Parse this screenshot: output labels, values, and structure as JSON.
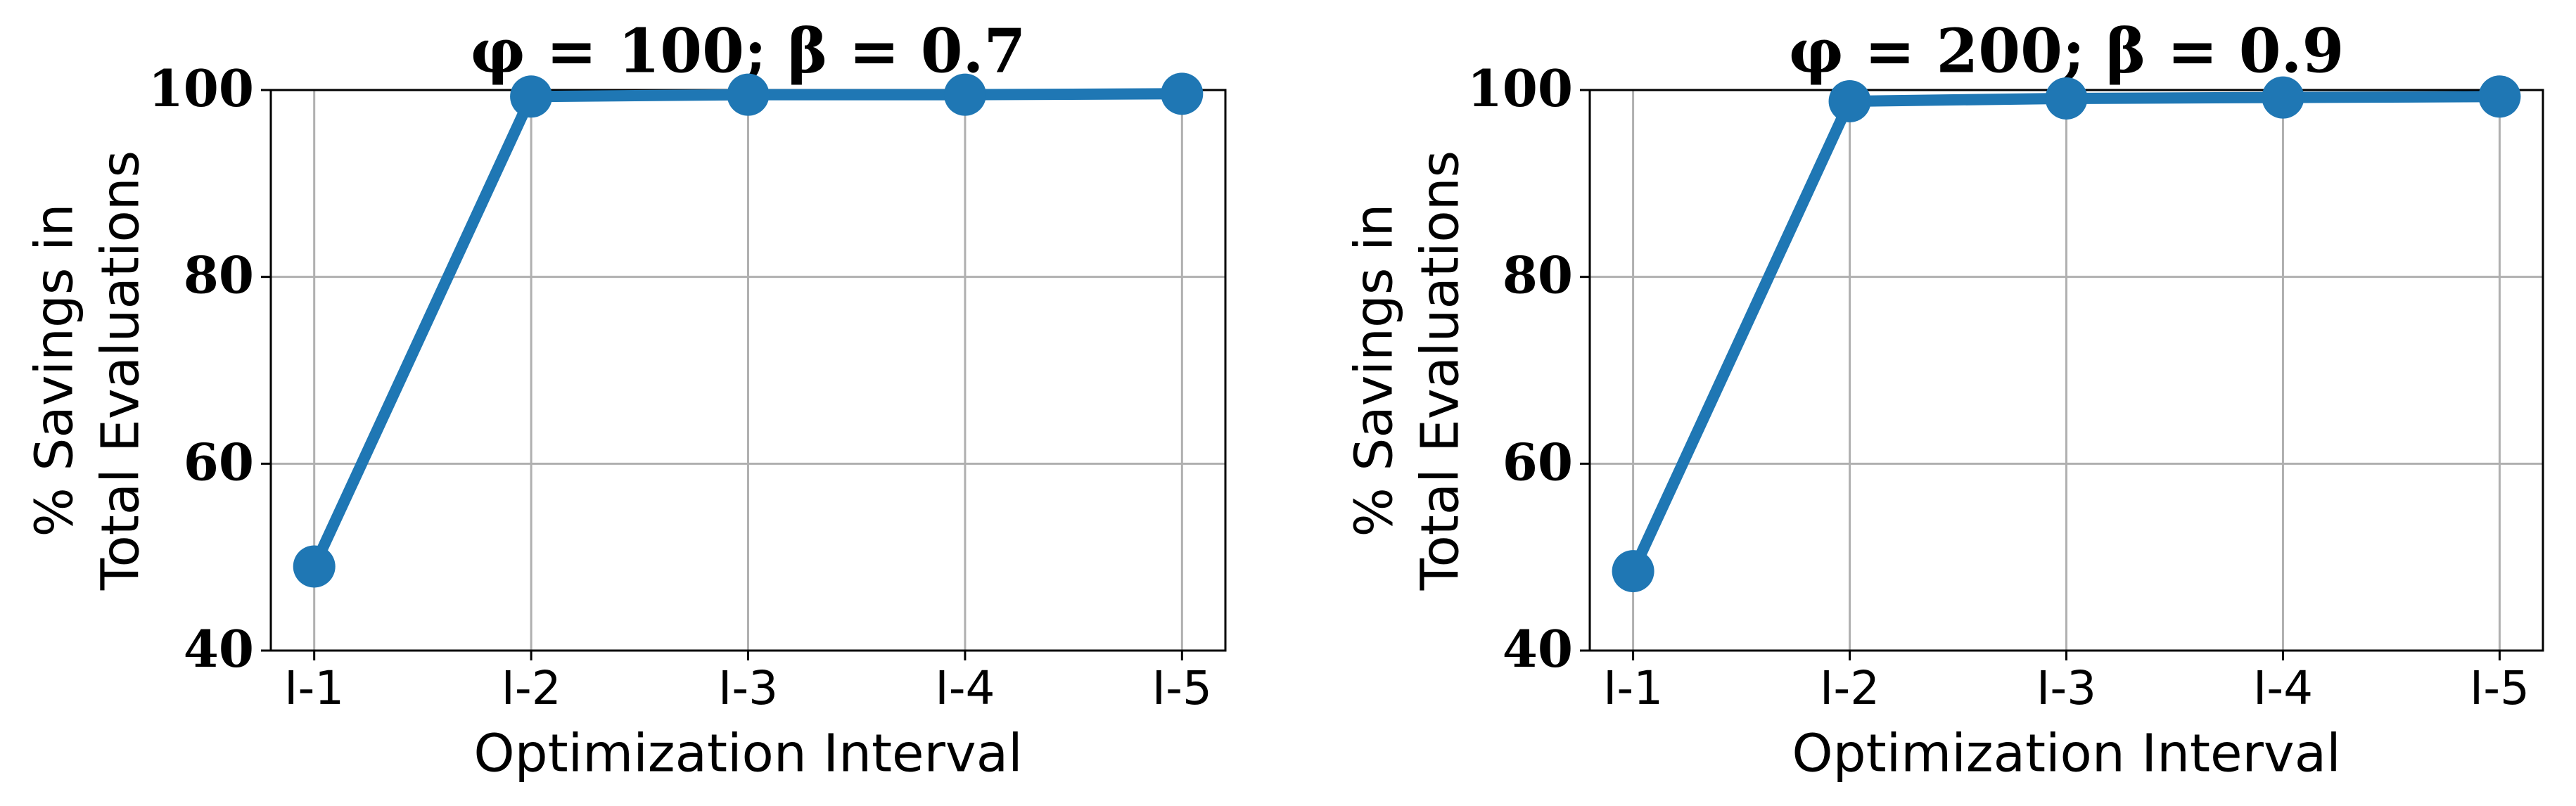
{
  "chart_data": [
    {
      "type": "line",
      "title": "φ = 100; β = 0.7",
      "xlabel": "Optimization Interval",
      "ylabel": [
        "% Savings in",
        "Total Evaluations"
      ],
      "categories": [
        "I-1",
        "I-2",
        "I-3",
        "I-4",
        "I-5"
      ],
      "series": [
        {
          "color": "#1f77b4",
          "values": [
            49,
            99.3,
            99.5,
            99.5,
            99.6
          ]
        }
      ],
      "ylim": [
        40,
        100
      ],
      "yticks": [
        40,
        60,
        80,
        100
      ],
      "grid": true
    },
    {
      "type": "line",
      "title": "φ = 200; β = 0.9",
      "xlabel": "Optimization Interval",
      "ylabel": [
        "% Savings in",
        "Total Evaluations"
      ],
      "categories": [
        "I-1",
        "I-2",
        "I-3",
        "I-4",
        "I-5"
      ],
      "series": [
        {
          "color": "#1f77b4",
          "values": [
            48.5,
            98.8,
            99.1,
            99.2,
            99.3
          ]
        }
      ],
      "ylim": [
        40,
        100
      ],
      "yticks": [
        40,
        60,
        80,
        100
      ],
      "grid": true
    }
  ]
}
